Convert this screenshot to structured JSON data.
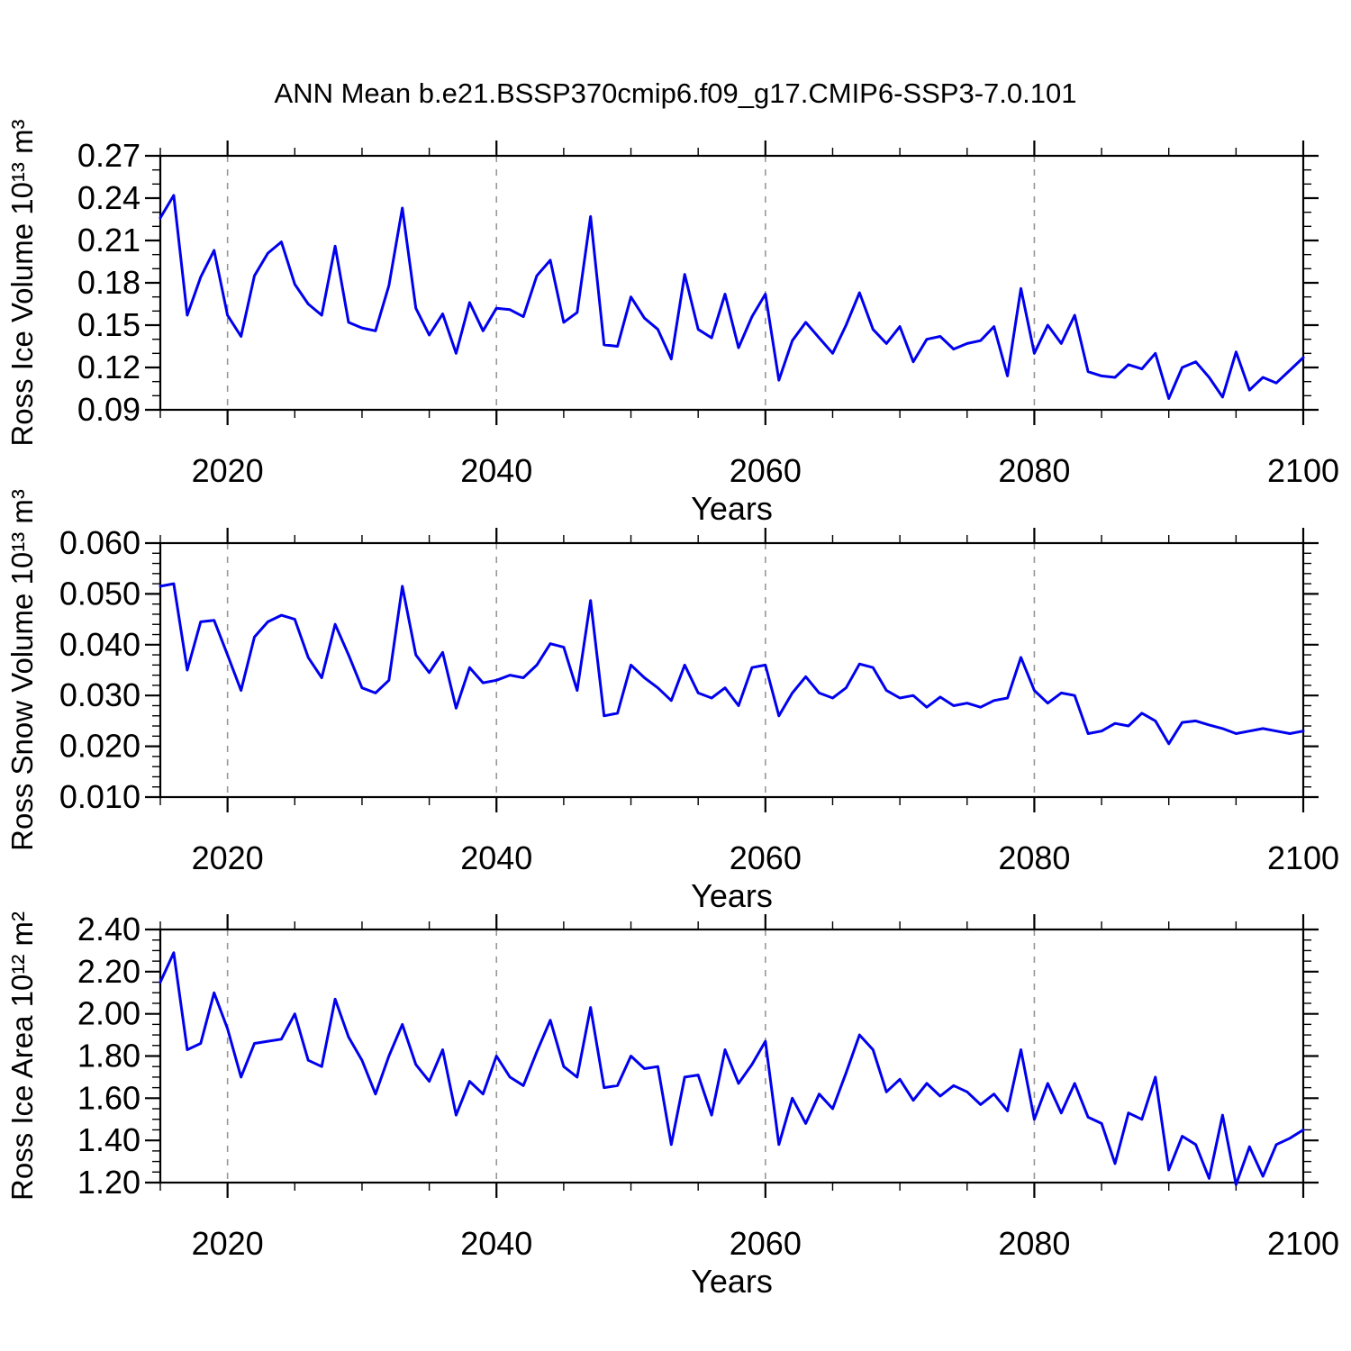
{
  "title": "ANN Mean b.e21.BSSP370cmip6.f09_g17.CMIP6-SSP3-7.0.101",
  "colors": {
    "line": "#0000ee",
    "axis": "#000000",
    "grid": "#979797",
    "background": "#ffffff"
  },
  "x_axis": {
    "label": "Years",
    "start": 2015,
    "end": 2100,
    "major_ticks": [
      2020,
      2040,
      2060,
      2080,
      2100
    ],
    "minor_step": 5,
    "gridlines": [
      2020,
      2040,
      2060,
      2080
    ]
  },
  "chart_data": [
    {
      "type": "line",
      "ylabel": "Ross Ice Volume 10¹³ m³",
      "xlabel": "Years",
      "ylim": [
        0.09,
        0.27
      ],
      "yticks": [
        "0.09",
        "0.12",
        "0.15",
        "0.18",
        "0.21",
        "0.24",
        "0.27"
      ],
      "yminor": 0.01,
      "xlim": [
        2015,
        2100
      ],
      "x_start": 2015,
      "legend": "none",
      "values": [
        0.226,
        0.242,
        0.157,
        0.184,
        0.203,
        0.157,
        0.142,
        0.185,
        0.201,
        0.209,
        0.179,
        0.165,
        0.157,
        0.206,
        0.152,
        0.148,
        0.146,
        0.178,
        0.233,
        0.162,
        0.143,
        0.158,
        0.13,
        0.166,
        0.146,
        0.162,
        0.161,
        0.156,
        0.185,
        0.196,
        0.152,
        0.159,
        0.227,
        0.136,
        0.135,
        0.17,
        0.155,
        0.147,
        0.126,
        0.186,
        0.147,
        0.141,
        0.172,
        0.134,
        0.156,
        0.172,
        0.111,
        0.139,
        0.152,
        0.141,
        0.13,
        0.15,
        0.173,
        0.147,
        0.137,
        0.149,
        0.124,
        0.14,
        0.142,
        0.133,
        0.137,
        0.139,
        0.149,
        0.114,
        0.176,
        0.13,
        0.15,
        0.137,
        0.157,
        0.117,
        0.114,
        0.113,
        0.122,
        0.119,
        0.13,
        0.098,
        0.12,
        0.124,
        0.113,
        0.099,
        0.131,
        0.104,
        0.113,
        0.109,
        0.118,
        0.127
      ]
    },
    {
      "type": "line",
      "ylabel": "Ross Snow Volume 10¹³ m³",
      "xlabel": "Years",
      "ylim": [
        0.01,
        0.06
      ],
      "yticks": [
        "0.010",
        "0.020",
        "0.030",
        "0.040",
        "0.050",
        "0.060"
      ],
      "yminor": 0.002,
      "xlim": [
        2015,
        2100
      ],
      "x_start": 2015,
      "legend": "none",
      "values": [
        0.0515,
        0.052,
        0.035,
        0.0445,
        0.0448,
        0.038,
        0.031,
        0.0415,
        0.0445,
        0.0458,
        0.045,
        0.0375,
        0.0335,
        0.044,
        0.038,
        0.0315,
        0.0305,
        0.033,
        0.0515,
        0.038,
        0.0345,
        0.0385,
        0.0275,
        0.0355,
        0.0325,
        0.033,
        0.034,
        0.0335,
        0.036,
        0.0402,
        0.0395,
        0.031,
        0.0487,
        0.026,
        0.0265,
        0.036,
        0.0335,
        0.0315,
        0.029,
        0.036,
        0.0305,
        0.0295,
        0.0315,
        0.028,
        0.0355,
        0.036,
        0.026,
        0.0305,
        0.0337,
        0.0305,
        0.0295,
        0.0315,
        0.0362,
        0.0355,
        0.031,
        0.0295,
        0.03,
        0.0277,
        0.0297,
        0.028,
        0.0285,
        0.0277,
        0.029,
        0.0295,
        0.0375,
        0.031,
        0.0285,
        0.0305,
        0.03,
        0.0225,
        0.023,
        0.0245,
        0.024,
        0.0265,
        0.025,
        0.0205,
        0.0247,
        0.025,
        0.0242,
        0.0235,
        0.0225,
        0.023,
        0.0235,
        0.023,
        0.0225,
        0.023
      ]
    },
    {
      "type": "line",
      "ylabel": "Ross Ice Area 10¹² m²",
      "xlabel": "Years",
      "ylim": [
        1.2,
        2.4
      ],
      "yticks": [
        "1.20",
        "1.40",
        "1.60",
        "1.80",
        "2.00",
        "2.20",
        "2.40"
      ],
      "yminor": 0.05,
      "xlim": [
        2015,
        2100
      ],
      "x_start": 2015,
      "legend": "none",
      "values": [
        2.15,
        2.29,
        1.83,
        1.86,
        2.1,
        1.93,
        1.7,
        1.86,
        1.87,
        1.88,
        2.0,
        1.78,
        1.75,
        2.07,
        1.89,
        1.78,
        1.62,
        1.8,
        1.95,
        1.76,
        1.68,
        1.83,
        1.52,
        1.68,
        1.62,
        1.8,
        1.7,
        1.66,
        1.82,
        1.97,
        1.75,
        1.7,
        2.03,
        1.65,
        1.66,
        1.8,
        1.74,
        1.75,
        1.38,
        1.7,
        1.71,
        1.52,
        1.83,
        1.67,
        1.76,
        1.87,
        1.38,
        1.6,
        1.48,
        1.62,
        1.55,
        1.72,
        1.9,
        1.83,
        1.63,
        1.69,
        1.59,
        1.67,
        1.61,
        1.66,
        1.63,
        1.57,
        1.62,
        1.54,
        1.83,
        1.5,
        1.67,
        1.53,
        1.67,
        1.51,
        1.48,
        1.29,
        1.53,
        1.5,
        1.7,
        1.26,
        1.42,
        1.38,
        1.22,
        1.52,
        1.19,
        1.37,
        1.23,
        1.38,
        1.41,
        1.45
      ]
    }
  ]
}
